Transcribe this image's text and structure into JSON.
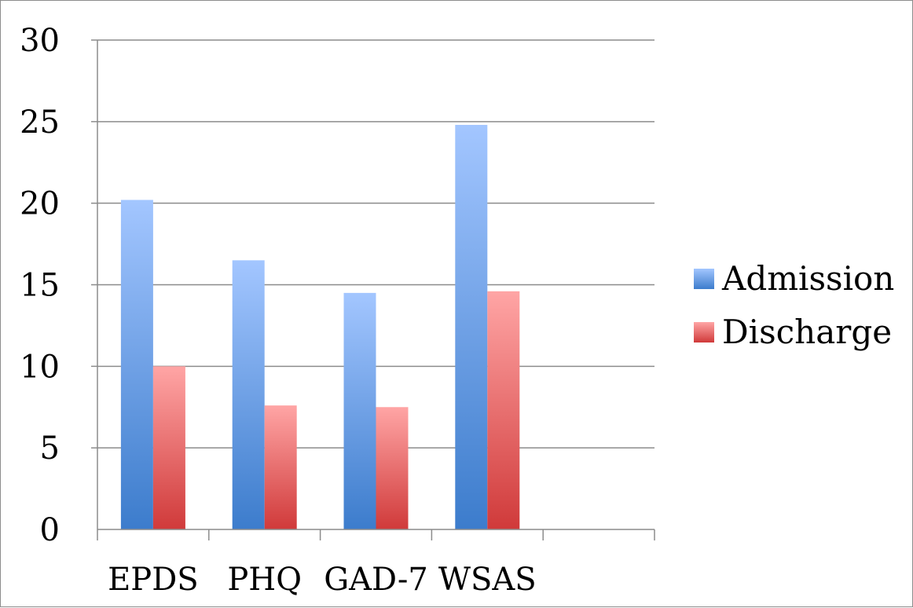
{
  "chart_data": {
    "type": "bar",
    "title": "",
    "xlabel": "",
    "ylabel": "",
    "categories": [
      "EPDS",
      "PHQ",
      "GAD-7",
      "WSAS",
      ""
    ],
    "series": [
      {
        "name": "Admission",
        "values": [
          20.2,
          16.5,
          14.5,
          24.8,
          null
        ],
        "color": "#4f8ee0"
      },
      {
        "name": "Discharge",
        "values": [
          10.0,
          7.6,
          7.5,
          14.6,
          null
        ],
        "color": "#e05c5c"
      }
    ],
    "ylim": [
      0,
      30
    ],
    "yticks": [
      "0",
      "5",
      "10",
      "15",
      "20",
      "25",
      "30"
    ],
    "grid": true,
    "legend_position": "right"
  }
}
